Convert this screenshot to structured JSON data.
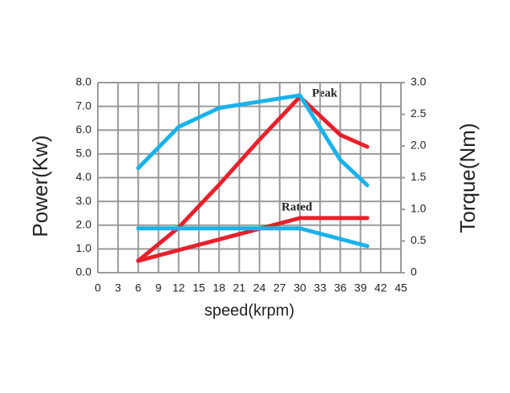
{
  "chart_data": {
    "type": "line",
    "x_label": "speed(krpm)",
    "y_label": "Power(Kw)",
    "y2_label": "Torque(Nm)",
    "annotations": [
      "Peak",
      "Rated"
    ],
    "xlim": [
      0,
      45
    ],
    "xticks": [
      0,
      3,
      6,
      9,
      12,
      15,
      18,
      21,
      24,
      27,
      30,
      33,
      36,
      39,
      42,
      45
    ],
    "ylim": [
      0,
      8
    ],
    "yticks": [
      {
        "value": 0,
        "label": "0.0"
      },
      {
        "value": 1,
        "label": "1.0"
      },
      {
        "value": 2,
        "label": "2.0"
      },
      {
        "value": 3,
        "label": "3.0"
      },
      {
        "value": 4,
        "label": "4.0"
      },
      {
        "value": 5,
        "label": "5.0"
      },
      {
        "value": 6,
        "label": "6.0"
      },
      {
        "value": 7,
        "label": "7.0"
      },
      {
        "value": 8,
        "label": "8.0"
      }
    ],
    "y2lim": [
      0,
      3
    ],
    "y2ticks": [
      0,
      0.5,
      {
        "value": 1,
        "label": "1.0"
      },
      1.5,
      {
        "value": 2,
        "label": "2.0"
      },
      2.5,
      {
        "value": 3,
        "label": "3.0"
      }
    ],
    "grid": true,
    "y_color": "#e8202c",
    "y2_color": "#1ab2ea",
    "series": [
      {
        "color": "#e8202c",
        "x": [
          6,
          12,
          18,
          24,
          30,
          36,
          40
        ],
        "values": [
          0.5,
          1.9,
          3.7,
          5.6,
          7.4,
          5.8,
          5.3
        ]
      },
      {
        "color": "#e8202c",
        "x": [
          6,
          30,
          40
        ],
        "values": [
          0.5,
          2.3,
          2.3
        ]
      },
      {
        "color": "#1ab2ea",
        "axis": "y2",
        "x": [
          6,
          12,
          18,
          24,
          30,
          36,
          40
        ],
        "values": [
          1.65,
          2.3,
          2.6,
          2.7,
          2.8,
          1.78,
          1.38
        ]
      },
      {
        "color": "#1ab2ea",
        "axis": "y2",
        "x": [
          6,
          30,
          40
        ],
        "values": [
          0.7,
          0.7,
          0.42
        ]
      }
    ]
  }
}
